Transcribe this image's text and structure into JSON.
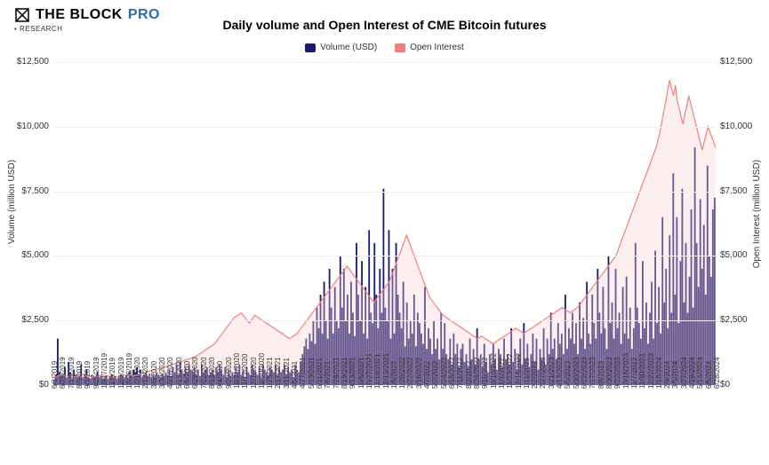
{
  "brand": {
    "name_a": "THE BLOCK",
    "name_b": "PRO",
    "subtitle": "RESEARCH"
  },
  "chart": {
    "type": "bar+line",
    "title": "Daily volume and Open Interest of CME Bitcoin futures",
    "title_fontsize": 14,
    "legend": [
      {
        "label": "Volume (USD)",
        "color": "#1a1a6e"
      },
      {
        "label": "Open Interest",
        "color": "#f08080"
      }
    ],
    "y_axis": {
      "label_left": "Volume (million USD)",
      "label_right": "Open Interest (million USD)",
      "label_fontsize": 10,
      "min": 0,
      "max": 12500,
      "tick_step": 2500,
      "tick_prefix": "$",
      "ticks": [
        "$0",
        "$2,500",
        "$5,000",
        "$7,500",
        "$10,000",
        "$12,500"
      ]
    },
    "x_axis": {
      "labels": [
        "6/3/2019",
        "6/25/2019",
        "7/18/2019",
        "8/9/2019",
        "9/3/2019",
        "9/25/2019",
        "10/17/2019",
        "11/8/2019",
        "12/3/2019",
        "12/26/2019",
        "1/21/2020",
        "2/12/2020",
        "3/6/2020",
        "3/30/2020",
        "4/21/2020",
        "5/13/2020",
        "6/5/2020",
        "6/29/2020",
        "7/22/2020",
        "8/13/2020",
        "9/4/2020",
        "9/29/2020",
        "10/21/2020",
        "11/12/2020",
        "12/7/2020",
        "12/30/2020",
        "1/25/2021",
        "2/17/2021",
        "3/11/2021",
        "4/5/2021",
        "4/27/2021",
        "5/19/2021",
        "6/11/2021",
        "7/6/2021",
        "7/28/2021",
        "8/19/2021",
        "9/13/2021",
        "10/5/2021",
        "10/27/2021",
        "11/18/2021",
        "12/13/2021",
        "1/5/2022",
        "1/28/2022",
        "2/22/2022",
        "3/16/2022",
        "4/7/2022",
        "5/2/2022",
        "5/24/2022",
        "6/16/2022",
        "7/11/2022",
        "8/2/2022",
        "8/24/2022",
        "9/16/2022",
        "10/10/2022",
        "11/1/2022",
        "11/23/2022",
        "12/16/2022",
        "1/11/2023",
        "2/2/2023",
        "2/27/2023",
        "3/21/2023",
        "4/13/2023",
        "5/5/2023",
        "5/30/2023",
        "6/22/2023",
        "7/17/2023",
        "8/8/2023",
        "8/30/2023",
        "9/22/2023",
        "10/16/2023",
        "11/7/2023",
        "11/30/2023",
        "12/22/2023",
        "1/18/2024",
        "2/9/2024",
        "3/5/2024",
        "3/27/2024",
        "4/19/2024",
        "5/13/2024",
        "6/5/2024",
        "6/28/2024"
      ],
      "label_fontsize": 8
    },
    "colors": {
      "volume_bar": "#1a1a6e",
      "oi_line": "#f08080",
      "oi_fill": "#f8d0d0",
      "background": "#ffffff",
      "grid": "#f0f0f0",
      "axis": "#cccccc"
    },
    "line_width": 1.2,
    "bar_density": 1200,
    "volume_series": [
      200,
      400,
      1800,
      500,
      400,
      350,
      700,
      300,
      900,
      500,
      250,
      600,
      400,
      300,
      350,
      800,
      300,
      400,
      600,
      300,
      250,
      400,
      300,
      350,
      500,
      300,
      400,
      250,
      300,
      350,
      250,
      300,
      400,
      300,
      350,
      250,
      300,
      400,
      350,
      300,
      400,
      300,
      500,
      400,
      600,
      500,
      700,
      400,
      600,
      300,
      400,
      500,
      350,
      450,
      300,
      400,
      350,
      500,
      400,
      300,
      450,
      350,
      500,
      400,
      600,
      350,
      700,
      500,
      800,
      400,
      900,
      600,
      450,
      700,
      500,
      800,
      600,
      500,
      700,
      400,
      600,
      350,
      800,
      500,
      600,
      700,
      400,
      500,
      600,
      400,
      700,
      500,
      800,
      600,
      400,
      700,
      300,
      600,
      350,
      500,
      400,
      700,
      500,
      800,
      400,
      600,
      300,
      700,
      500,
      400,
      800,
      600,
      500,
      400,
      700,
      300,
      800,
      600,
      500,
      400,
      700,
      600,
      500,
      800,
      400,
      700,
      500,
      600,
      800,
      400,
      700,
      500,
      600,
      300,
      800,
      600,
      500,
      900,
      1200,
      1500,
      1800,
      1400,
      2000,
      1700,
      2500,
      1600,
      3000,
      2200,
      3500,
      2000,
      4000,
      2500,
      1800,
      4500,
      3000,
      2000,
      3800,
      2500,
      2200,
      5000,
      3000,
      4500,
      2500,
      3500,
      2000,
      4000,
      2800,
      1900,
      5500,
      3500,
      2500,
      4800,
      2000,
      3800,
      1800,
      6000,
      2800,
      2400,
      5500,
      3500,
      2200,
      4500,
      2800,
      7600,
      3000,
      2500,
      6000,
      1800,
      4500,
      2000,
      5500,
      3500,
      2800,
      2200,
      4000,
      1500,
      3200,
      1800,
      2500,
      2000,
      3500,
      1500,
      2800,
      2400,
      2000,
      1600,
      3800,
      1400,
      2200,
      1800,
      1200,
      2500,
      1400,
      1800,
      1000,
      2800,
      1400,
      2400,
      1200,
      1000,
      1800,
      800,
      2000,
      1200,
      1600,
      700,
      1400,
      1600,
      900,
      1200,
      700,
      1800,
      1000,
      1400,
      800,
      2200,
      1000,
      1200,
      700,
      1600,
      900,
      500,
      1200,
      800,
      1600,
      1000,
      600,
      1400,
      1200,
      700,
      1800,
      1000,
      1200,
      800,
      2200,
      900,
      1400,
      600,
      1200,
      1800,
      800,
      2400,
      1000,
      1600,
      700,
      1200,
      2000,
      900,
      1800,
      600,
      1400,
      1000,
      2200,
      800,
      1800,
      1200,
      2800,
      1400,
      1800,
      1000,
      2400,
      1600,
      2000,
      1200,
      3500,
      1400,
      2200,
      1800,
      2800,
      1600,
      2400,
      1200,
      3200,
      1800,
      2600,
      1400,
      4000,
      2000,
      1600,
      3500,
      2400,
      1800,
      4500,
      2800,
      2000,
      3800,
      2200,
      1400,
      5000,
      2400,
      3200,
      1800,
      4500,
      2200,
      2800,
      1600,
      3800,
      2000,
      4200,
      1800,
      3000,
      1400,
      2200,
      5500,
      3000,
      2400,
      1800,
      4800,
      2200,
      3200,
      1600,
      2800,
      4000,
      1800,
      5200,
      2400,
      3800,
      2000,
      6500,
      3200,
      4500,
      2200,
      5800,
      2800,
      8200,
      3500,
      6500,
      2400,
      4800,
      7600,
      3200,
      5500,
      2800,
      4200,
      6800,
      3000,
      9200,
      5500,
      3800,
      7200,
      4500,
      6200,
      3500,
      8500,
      5000,
      4200,
      6800,
      7254
    ],
    "open_interest_series": [
      300,
      320,
      350,
      380,
      400,
      420,
      380,
      360,
      340,
      380,
      350,
      320,
      340,
      360,
      380,
      400,
      420,
      380,
      360,
      340,
      320,
      300,
      320,
      340,
      360,
      380,
      400,
      380,
      360,
      340,
      320,
      300,
      280,
      300,
      320,
      340,
      360,
      380,
      400,
      420,
      400,
      380,
      360,
      380,
      400,
      420,
      450,
      480,
      500,
      520,
      540,
      560,
      580,
      600,
      620,
      640,
      660,
      680,
      700,
      720,
      750,
      780,
      800,
      820,
      850,
      880,
      900,
      920,
      950,
      980,
      1000,
      1020,
      1050,
      1080,
      1100,
      1150,
      1200,
      1250,
      1300,
      1350,
      1400,
      1450,
      1500,
      1550,
      1600,
      1700,
      1800,
      1900,
      2000,
      2100,
      2200,
      2300,
      2400,
      2500,
      2600,
      2650,
      2700,
      2750,
      2800,
      2700,
      2600,
      2500,
      2400,
      2500,
      2600,
      2700,
      2650,
      2600,
      2550,
      2500,
      2450,
      2400,
      2350,
      2300,
      2250,
      2200,
      2150,
      2100,
      2050,
      2000,
      1950,
      1900,
      1850,
      1800,
      1850,
      1900,
      1950,
      2000,
      2100,
      2200,
      2300,
      2400,
      2500,
      2600,
      2700,
      2800,
      2900,
      3000,
      3100,
      3200,
      3300,
      3400,
      3500,
      3600,
      3700,
      3800,
      3900,
      4000,
      4100,
      4200,
      4300,
      4400,
      4500,
      4600,
      4500,
      4400,
      4300,
      4200,
      4100,
      4000,
      3900,
      3800,
      3700,
      3600,
      3500,
      3400,
      3300,
      3200,
      3300,
      3400,
      3500,
      3600,
      3700,
      3800,
      3900,
      4000,
      4200,
      4400,
      4600,
      4800,
      5000,
      5200,
      5400,
      5600,
      5800,
      5600,
      5400,
      5200,
      5000,
      4800,
      4600,
      4400,
      4200,
      4000,
      3800,
      3600,
      3400,
      3300,
      3200,
      3100,
      3000,
      2900,
      2800,
      2700,
      2650,
      2600,
      2550,
      2500,
      2450,
      2400,
      2350,
      2300,
      2250,
      2200,
      2150,
      2100,
      2050,
      2000,
      1950,
      1900,
      1850,
      1800,
      1850,
      1900,
      1850,
      1800,
      1750,
      1700,
      1650,
      1600,
      1650,
      1700,
      1750,
      1800,
      1850,
      1900,
      1950,
      2000,
      2050,
      2100,
      2150,
      2200,
      2150,
      2100,
      2050,
      2000,
      2050,
      2100,
      2150,
      2200,
      2250,
      2300,
      2350,
      2400,
      2450,
      2500,
      2550,
      2600,
      2650,
      2700,
      2750,
      2800,
      2850,
      2900,
      2950,
      3000,
      2950,
      2900,
      2850,
      2800,
      2850,
      2900,
      2950,
      3000,
      3100,
      3200,
      3300,
      3400,
      3500,
      3600,
      3700,
      3800,
      3900,
      4000,
      4100,
      4200,
      4300,
      4400,
      4500,
      4600,
      4700,
      4800,
      4900,
      5000,
      5200,
      5400,
      5600,
      5800,
      6000,
      6200,
      6400,
      6600,
      6800,
      7000,
      7200,
      7400,
      7600,
      7800,
      8000,
      8200,
      8400,
      8600,
      8800,
      9000,
      9200,
      9500,
      9800,
      10200,
      10600,
      11000,
      11400,
      11800,
      11500,
      11200,
      11600,
      11000,
      10700,
      10400,
      10100,
      10500,
      10800,
      11200,
      10900,
      10600,
      10300,
      10000,
      9700,
      9400,
      9100,
      9400,
      9700,
      10000,
      9800,
      9600,
      9400,
      9200
    ]
  }
}
